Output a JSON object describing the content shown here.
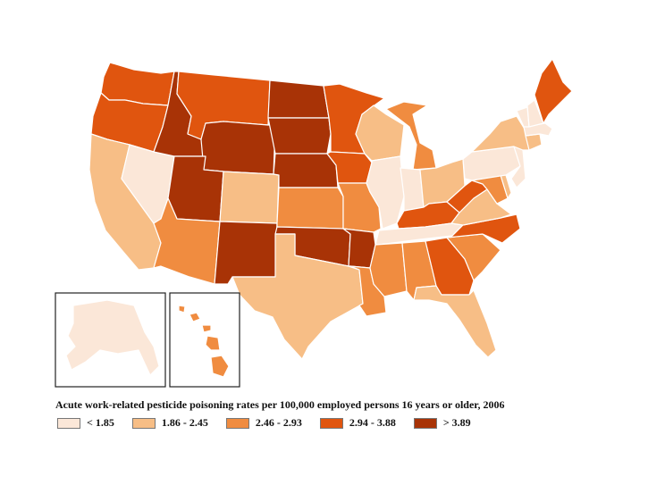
{
  "map": {
    "title": "Acute work-related pesticide poisoning rates per 100,000 employed persons 16 years or older, 2006",
    "legend": [
      {
        "label": "< 1.85",
        "color": "#fbe7d8"
      },
      {
        "label": "1.86 - 2.45",
        "color": "#f7be86"
      },
      {
        "label": "2.46 - 2.93",
        "color": "#f08c40"
      },
      {
        "label": "2.94 - 3.88",
        "color": "#e0550f"
      },
      {
        "label": "> 3.89",
        "color": "#a83306"
      }
    ],
    "states": {
      "WA": 3,
      "OR": 3,
      "CA": 1,
      "NV": 0,
      "ID": 4,
      "MT": 3,
      "WY": 4,
      "UT": 4,
      "AZ": 2,
      "CO": 1,
      "NM": 4,
      "ND": 4,
      "SD": 4,
      "NE": 4,
      "KS": 2,
      "OK": 4,
      "TX": 1,
      "MN": 3,
      "IA": 3,
      "MO": 2,
      "AR": 4,
      "LA": 2,
      "WI": 1,
      "IL": 0,
      "MI": 2,
      "IN": 0,
      "OH": 1,
      "KY": 3,
      "TN": 0,
      "MS": 2,
      "AL": 2,
      "GA": 3,
      "FL": 1,
      "SC": 2,
      "NC": 3,
      "VA": 1,
      "WV": 3,
      "PA": 0,
      "NY": 1,
      "VT": 0,
      "NH": 0,
      "ME": 3,
      "MA": 0,
      "CT": 1,
      "NJ": 0,
      "MD": 2,
      "DE": 1,
      "AK": 0,
      "HI": 2
    }
  }
}
